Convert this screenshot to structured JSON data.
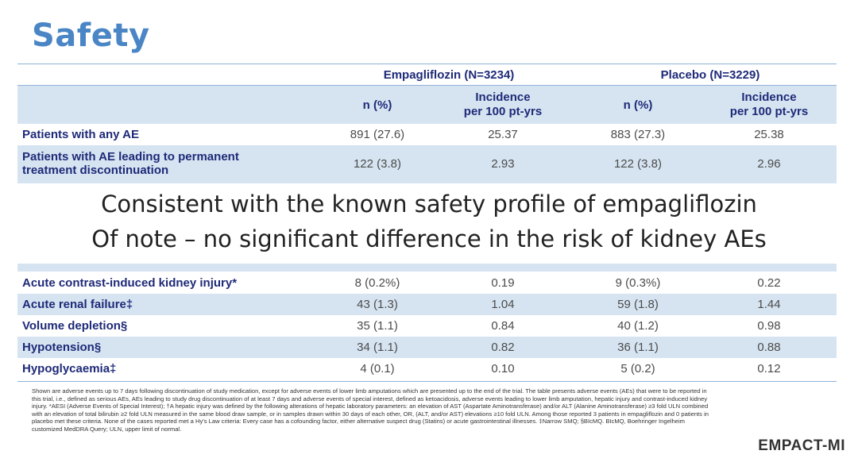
{
  "title": "Safety",
  "groups": {
    "empa": "Empagliflozin (N=3234)",
    "placebo": "Placebo (N=3229)"
  },
  "col_headers": {
    "n_pct": "n (%)",
    "incidence_line1": "Incidence",
    "incidence_line2": "per 100 pt-yrs"
  },
  "rows": [
    {
      "label": "Patients with any AE",
      "empa_n": "891 (27.6)",
      "empa_inc": "25.37",
      "plc_n": "883 (27.3)",
      "plc_inc": "25.38"
    },
    {
      "label_line1": "Patients with AE leading to permanent",
      "label_line2": "treatment discontinuation",
      "empa_n": "122 (3.8)",
      "empa_inc": "2.93",
      "plc_n": "122 (3.8)",
      "plc_inc": "2.96"
    },
    {
      "label": "Acute contrast-induced kidney injury*",
      "empa_n": "8 (0.2%)",
      "empa_inc": "0.19",
      "plc_n": "9 (0.3%)",
      "plc_inc": "0.22"
    },
    {
      "label": "Acute renal failure‡",
      "empa_n": "43 (1.3)",
      "empa_inc": "1.04",
      "plc_n": "59 (1.8)",
      "plc_inc": "1.44"
    },
    {
      "label": "Volume depletion§",
      "empa_n": "35 (1.1)",
      "empa_inc": "0.84",
      "plc_n": "40 (1.2)",
      "plc_inc": "0.98"
    },
    {
      "label": "Hypotension§",
      "empa_n": "34 (1.1)",
      "empa_inc": "0.82",
      "plc_n": "36 (1.1)",
      "plc_inc": "0.88"
    },
    {
      "label": "Hypoglycaemia‡",
      "empa_n": "4 (0.1)",
      "empa_inc": "0.10",
      "plc_n": "5 (0.2)",
      "plc_inc": "0.12"
    }
  ],
  "message": {
    "line1": "Consistent with the known safety profile of empagliflozin",
    "line2": "Of note – no significant difference in the risk of kidney AEs"
  },
  "footnote": "Shown are adverse events up to 7 days following discontinuation of study medication, except for adverse events of lower limb amputations which are presented up to the end of the trial. The table presents adverse events (AEs) that were to be reported in this trial, i.e., defined as serious AEs, AEs leading to study drug discontinuation of at least 7 days and adverse events of special interest, defined as ketoacidosis, adverse events leading to lower limb amputation, hepatic injury and contrast-induced kidney injury. *AESI (Adverse Events of Special Interest); †A hepatic injury was defined by the following alterations of hepatic laboratory parameters: an elevation of AST (Aspartate Aminotransferase) and/or ALT (Alanine Aminotransferase) ≥3 fold ULN combined with an elevation of total bilirubin ≥2 fold ULN measured in the same blood draw sample, or in samples drawn within 30 days of each other, OR, (ALT, and/or AST) elevations ≥10 fold ULN. Among those reported 3 patients in empagliflozin and 0 patients in placebo met these criteria. None of the cases reported met a Hy's Law criteria: Every case has a cofounding factor, either alternative suspect drug (Statins) or acute gastrointestinal illnesses. ‡Narrow SMQ; §BIcMQ. BIcMQ, Boehringer Ingelheim customized MedDRA Query; ULN, upper limit of normal.",
  "brand": "EMPACT-MI"
}
